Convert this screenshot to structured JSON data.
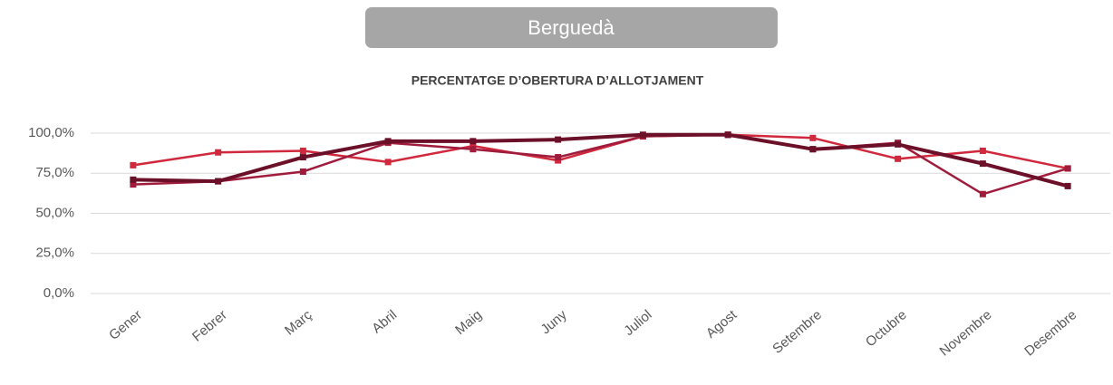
{
  "header": "Berguedà",
  "chart_data": {
    "type": "line",
    "title": "PERCENTATGE D’OBERTURA D’ALLOTJAMENT",
    "categories": [
      "Gener",
      "Febrer",
      "Març",
      "Abril",
      "Maig",
      "Juny",
      "Juliol",
      "Agost",
      "Setembre",
      "Octubre",
      "Novembre",
      "Desembre"
    ],
    "series": [
      {
        "color": "#d0283c",
        "values": [
          80,
          88,
          89,
          82,
          92,
          83,
          98,
          99,
          97,
          84,
          89,
          78
        ]
      },
      {
        "color": "#a01c3c",
        "values": [
          68,
          70,
          76,
          94,
          90,
          85,
          98,
          99,
          90,
          94,
          62,
          78
        ]
      },
      {
        "color": "#6b1028",
        "values": [
          71,
          70,
          85,
          95,
          95,
          96,
          99,
          99,
          90,
          93,
          81,
          67
        ]
      }
    ],
    "ylim": [
      0,
      100
    ],
    "yticks": [
      {
        "value": 0,
        "label": "0,0%"
      },
      {
        "value": 25,
        "label": "25,0%"
      },
      {
        "value": 50,
        "label": "50,0%"
      },
      {
        "value": 75,
        "label": "75,0%"
      },
      {
        "value": 100,
        "label": "100,0%"
      }
    ],
    "grid": true
  }
}
